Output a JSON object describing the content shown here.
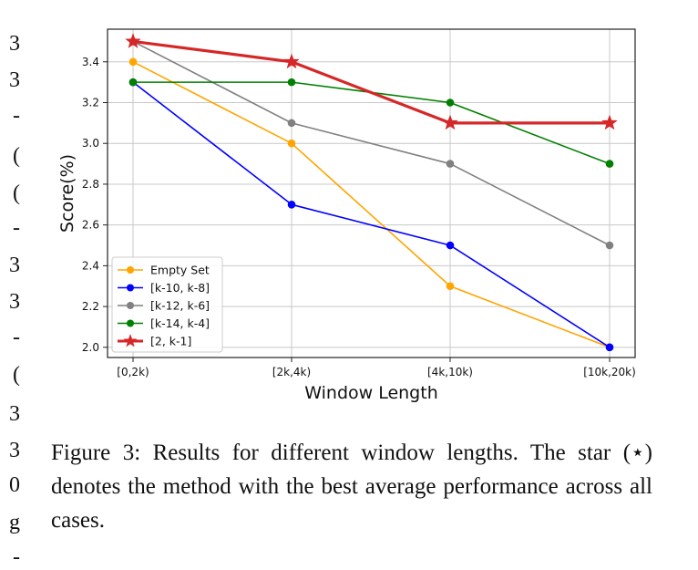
{
  "chart_data": {
    "type": "line",
    "title": "",
    "xlabel": "Window Length",
    "ylabel": "Score(%)",
    "categories": [
      "[0,2k)",
      "[2k,4k)",
      "[4k,10k)",
      "[10k,20k)"
    ],
    "ylim": [
      1.95,
      3.56
    ],
    "yticks": [
      2.0,
      2.2,
      2.4,
      2.6,
      2.8,
      3.0,
      3.2,
      3.4
    ],
    "ytick_labels": [
      "2.0",
      "2.2",
      "2.4",
      "2.6",
      "2.8",
      "3.0",
      "3.2",
      "3.4"
    ],
    "grid": true,
    "legend_position": "lower-left",
    "series": [
      {
        "name": "Empty Set",
        "values": [
          3.4,
          3.0,
          2.3,
          2.0
        ],
        "color": "#ffa500",
        "marker": "circle",
        "highlight": false
      },
      {
        "name": "[k-10, k-8]",
        "values": [
          3.3,
          2.7,
          2.5,
          2.0
        ],
        "color": "#0000ff",
        "marker": "circle",
        "highlight": false
      },
      {
        "name": "[k-12, k-6]",
        "values": [
          3.5,
          3.1,
          2.9,
          2.5
        ],
        "color": "#808080",
        "marker": "circle",
        "highlight": false
      },
      {
        "name": "[k-14, k-4]",
        "values": [
          3.3,
          3.3,
          3.2,
          2.9
        ],
        "color": "#008000",
        "marker": "circle",
        "highlight": false
      },
      {
        "name": "[2, k-1]",
        "values": [
          3.5,
          3.4,
          3.1,
          3.1
        ],
        "color": "#d62728",
        "marker": "star",
        "highlight": true
      }
    ]
  },
  "caption": {
    "text": "Figure 3: Results for different window lengths. The star (⋆) denotes the method with the best average performance across all cases."
  },
  "margin_fragments": [
    "3",
    "3",
    "-",
    "(",
    "(",
    "-",
    "3",
    "3",
    "-",
    "(",
    "3",
    "3",
    "0",
    "g",
    "-"
  ]
}
